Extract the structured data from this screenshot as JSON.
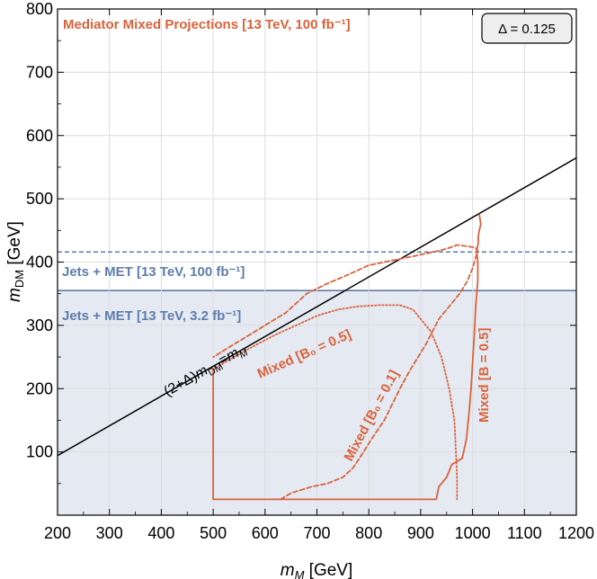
{
  "chart_data": {
    "type": "line",
    "title": "Mediator Mixed Projections [13 TeV, 100 fb⁻¹]",
    "xlabel": {
      "main": "m",
      "sub": "M",
      "unit": " [GeV]"
    },
    "ylabel": {
      "main": "m",
      "sub": "DM",
      "unit": " [GeV]"
    },
    "xlim": [
      200,
      1200
    ],
    "ylim": [
      0,
      800
    ],
    "xticks": [
      200,
      300,
      400,
      500,
      600,
      700,
      800,
      900,
      1000,
      1100,
      1200
    ],
    "yticks": [
      100,
      200,
      300,
      400,
      500,
      600,
      700,
      800
    ],
    "xticklabels": [
      "200",
      "300",
      "400",
      "500",
      "600",
      "700",
      "800",
      "900",
      "1000",
      "1100",
      "1200"
    ],
    "yticklabels": [
      "100",
      "200",
      "300",
      "400",
      "500",
      "600",
      "700",
      "800"
    ],
    "grid": true,
    "delta_box": "Δ = 0.125",
    "delta": 0.125,
    "shaded_region": {
      "label": "Jets + MET [13 TeV, 3.2 fb⁻¹]",
      "y_max": 355,
      "color": "#5e7cac"
    },
    "dashed_line": {
      "label": "Jets + MET [13 TeV, 100 fb⁻¹]",
      "y": 416,
      "color": "#5e7cac"
    },
    "diagonal": {
      "label_parts": [
        "(2+Δ)",
        "m",
        "DM",
        "=",
        "m",
        "M"
      ]
    },
    "series": [
      {
        "name": "Mixed [B = 0.5]",
        "style": "solid",
        "color": "#d9623b",
        "x": [
          500,
          500,
          930,
          935,
          950,
          960,
          980,
          988,
          993,
          997,
          1000,
          1003,
          1006,
          1010,
          1010,
          1008,
          1011,
          1011,
          1013,
          1016,
          1013
        ],
        "y": [
          230,
          25,
          25,
          45,
          60,
          80,
          90,
          120,
          160,
          200,
          240,
          280,
          330,
          370,
          400,
          418,
          430,
          440,
          450,
          460,
          475
        ]
      },
      {
        "name": "Mixed [B₀ = 0.1]",
        "style": "dashed",
        "color": "#d9623b",
        "x": [
          630,
          650,
          690,
          720,
          750,
          770,
          790,
          805,
          830,
          860,
          880,
          910,
          935,
          955,
          975,
          990,
          1000,
          1005,
          1010,
          1005,
          990,
          970,
          950,
          920,
          890,
          860,
          800,
          760,
          720,
          680,
          640,
          600,
          560,
          520,
          500
        ],
        "y": [
          25,
          35,
          45,
          50,
          60,
          75,
          100,
          120,
          150,
          200,
          230,
          270,
          310,
          330,
          350,
          370,
          390,
          405,
          418,
          423,
          425,
          427,
          421,
          415,
          410,
          405,
          395,
          380,
          366,
          350,
          320,
          300,
          280,
          260,
          250
        ]
      },
      {
        "name": "Mixed [B₀ = 0.5]",
        "style": "dotted",
        "color": "#d9623b",
        "x": [
          500,
          540,
          580,
          620,
          660,
          700,
          740,
          780,
          820,
          860,
          885,
          900,
          920,
          940,
          955,
          965,
          968,
          970,
          970
        ],
        "y": [
          230,
          250,
          268,
          285,
          300,
          315,
          325,
          330,
          332,
          332,
          325,
          310,
          290,
          250,
          200,
          150,
          100,
          60,
          25
        ]
      }
    ]
  }
}
